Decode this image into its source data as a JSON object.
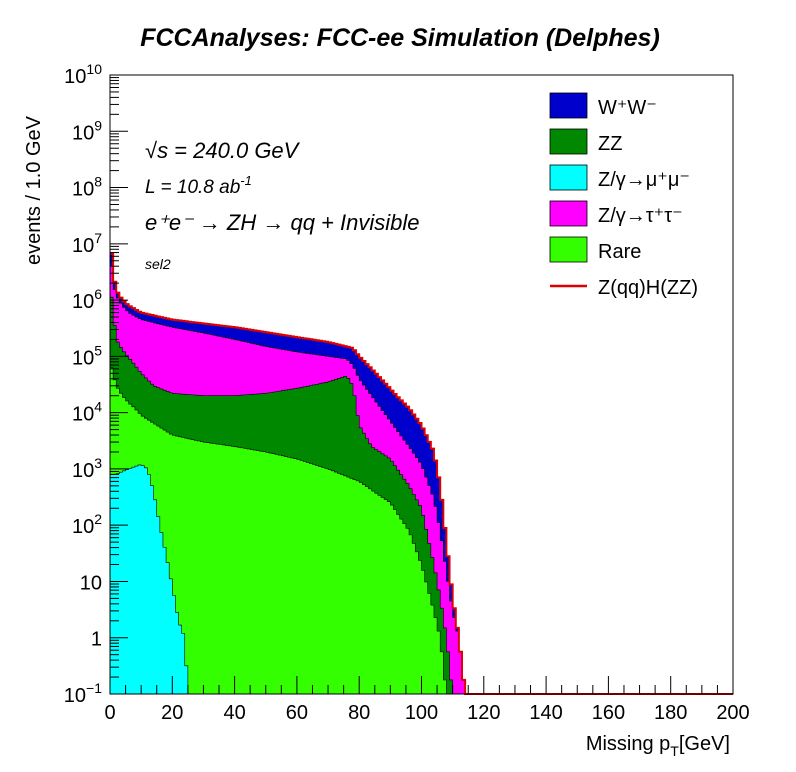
{
  "chart_data": {
    "type": "area",
    "title": "FCCAnalyses: FCC-ee Simulation (Delphes)",
    "xlabel": "Missing p",
    "xlabel_sub": "T",
    "xlabel_unit": "[GeV]",
    "ylabel": "events / 1.0 GeV",
    "xlim": [
      0,
      200
    ],
    "ylim": [
      0.1,
      10000000000
    ],
    "yscale": "log",
    "grid": false,
    "legend_placement": "top-right",
    "x_ticks": [
      0,
      20,
      40,
      60,
      80,
      100,
      120,
      140,
      160,
      180,
      200
    ],
    "y_ticks": [
      {
        "value": 0.1,
        "base": "10",
        "exp": "−1"
      },
      {
        "value": 1,
        "base": "1",
        "exp": ""
      },
      {
        "value": 10,
        "base": "10",
        "exp": ""
      },
      {
        "value": 100,
        "base": "10",
        "exp": "2"
      },
      {
        "value": 1000,
        "base": "10",
        "exp": "3"
      },
      {
        "value": 10000,
        "base": "10",
        "exp": "4"
      },
      {
        "value": 100000,
        "base": "10",
        "exp": "5"
      },
      {
        "value": 1000000,
        "base": "10",
        "exp": "6"
      },
      {
        "value": 10000000,
        "base": "10",
        "exp": "7"
      },
      {
        "value": 100000000,
        "base": "10",
        "exp": "8"
      },
      {
        "value": 1000000000,
        "base": "10",
        "exp": "9"
      },
      {
        "value": 10000000000,
        "base": "10",
        "exp": "10"
      }
    ],
    "annotations": {
      "energy": "√s = 240.0 GeV",
      "lumi_prefix": "L = 10.8 ab",
      "lumi_exp": "-1",
      "process": "e⁺e⁻ → ZH → qq + Invisible",
      "selection": "sel2"
    },
    "series": [
      {
        "name": "W⁺W⁻",
        "color": "#0000cc",
        "stacked": true,
        "cumulative_top": [
          [
            0,
            15000000
          ],
          [
            1,
            3000000
          ],
          [
            2,
            1500000
          ],
          [
            4,
            1000000
          ],
          [
            6,
            800000
          ],
          [
            10,
            600000
          ],
          [
            20,
            450000
          ],
          [
            40,
            330000
          ],
          [
            60,
            220000
          ],
          [
            70,
            180000
          ],
          [
            76,
            150000
          ],
          [
            78,
            140000
          ],
          [
            80,
            100000
          ],
          [
            84,
            60000
          ],
          [
            88,
            35000
          ],
          [
            92,
            20000
          ],
          [
            96,
            12000
          ],
          [
            100,
            6000
          ],
          [
            104,
            2000
          ],
          [
            106,
            500
          ],
          [
            108,
            50
          ],
          [
            110,
            5
          ],
          [
            112,
            1
          ],
          [
            114,
            0.1
          ]
        ]
      },
      {
        "name": "ZZ",
        "color": "#008800",
        "stacked": true,
        "cumulative_top": [
          [
            0,
            2000000
          ],
          [
            2,
            200000
          ],
          [
            4,
            130000
          ],
          [
            8,
            70000
          ],
          [
            10,
            50000
          ],
          [
            14,
            30000
          ],
          [
            20,
            22000
          ],
          [
            30,
            20000
          ],
          [
            40,
            20000
          ],
          [
            50,
            22000
          ],
          [
            60,
            27000
          ],
          [
            70,
            35000
          ],
          [
            76,
            45000
          ],
          [
            78,
            30000
          ],
          [
            80,
            6000
          ],
          [
            84,
            2500
          ],
          [
            90,
            1500
          ],
          [
            96,
            500
          ],
          [
            100,
            200
          ],
          [
            104,
            20
          ],
          [
            106,
            5
          ],
          [
            108,
            1
          ],
          [
            110,
            0.1
          ]
        ]
      },
      {
        "name": "Z/γ→μ⁺μ⁻",
        "color": "#00ffff",
        "stacked": true,
        "cumulative_top": [
          [
            0,
            800
          ],
          [
            2,
            800
          ],
          [
            4,
            900
          ],
          [
            6,
            1000
          ],
          [
            8,
            1100
          ],
          [
            10,
            1200
          ],
          [
            12,
            1000
          ],
          [
            14,
            400
          ],
          [
            16,
            100
          ],
          [
            18,
            30
          ],
          [
            20,
            8
          ],
          [
            22,
            2
          ],
          [
            24,
            1
          ],
          [
            25,
            0.1
          ]
        ]
      },
      {
        "name": "Z/γ→τ⁺τ⁻",
        "color": "#ff00ff",
        "stacked": true,
        "cumulative_top": [
          [
            0,
            8000000
          ],
          [
            1,
            2000000
          ],
          [
            2,
            1200000
          ],
          [
            4,
            800000
          ],
          [
            6,
            600000
          ],
          [
            10,
            450000
          ],
          [
            20,
            330000
          ],
          [
            30,
            260000
          ],
          [
            40,
            200000
          ],
          [
            50,
            150000
          ],
          [
            60,
            120000
          ],
          [
            70,
            100000
          ],
          [
            76,
            90000
          ],
          [
            78,
            70000
          ],
          [
            80,
            40000
          ],
          [
            84,
            20000
          ],
          [
            88,
            10000
          ],
          [
            92,
            5000
          ],
          [
            96,
            2500
          ],
          [
            100,
            1200
          ],
          [
            104,
            300
          ],
          [
            106,
            80
          ],
          [
            108,
            15
          ],
          [
            110,
            3
          ],
          [
            112,
            1
          ],
          [
            114,
            0.1
          ]
        ]
      },
      {
        "name": "Rare",
        "color": "#33ff00",
        "stacked": true,
        "cumulative_top": [
          [
            0,
            80000
          ],
          [
            2,
            30000
          ],
          [
            4,
            20000
          ],
          [
            6,
            15000
          ],
          [
            8,
            12000
          ],
          [
            10,
            9000
          ],
          [
            15,
            6000
          ],
          [
            20,
            4000
          ],
          [
            30,
            3000
          ],
          [
            40,
            2500
          ],
          [
            50,
            2000
          ],
          [
            60,
            1500
          ],
          [
            70,
            1000
          ],
          [
            80,
            600
          ],
          [
            90,
            250
          ],
          [
            96,
            80
          ],
          [
            100,
            20
          ],
          [
            104,
            3
          ],
          [
            106,
            1
          ],
          [
            108,
            0.1
          ]
        ]
      },
      {
        "name": "Z(qq)H(ZZ)",
        "color": "#dd0000",
        "stacked": false,
        "cumulative_top": [
          [
            0,
            15000000
          ],
          [
            1,
            3000000
          ],
          [
            2,
            1500000
          ],
          [
            4,
            1000000
          ],
          [
            6,
            800000
          ],
          [
            10,
            600000
          ],
          [
            20,
            450000
          ],
          [
            40,
            330000
          ],
          [
            60,
            220000
          ],
          [
            70,
            180000
          ],
          [
            76,
            150000
          ],
          [
            78,
            140000
          ],
          [
            80,
            100000
          ],
          [
            84,
            60000
          ],
          [
            88,
            35000
          ],
          [
            92,
            20000
          ],
          [
            96,
            12000
          ],
          [
            100,
            6000
          ],
          [
            104,
            2000
          ],
          [
            106,
            500
          ],
          [
            108,
            50
          ],
          [
            110,
            5
          ],
          [
            112,
            1
          ],
          [
            114,
            0.1
          ]
        ]
      }
    ]
  }
}
